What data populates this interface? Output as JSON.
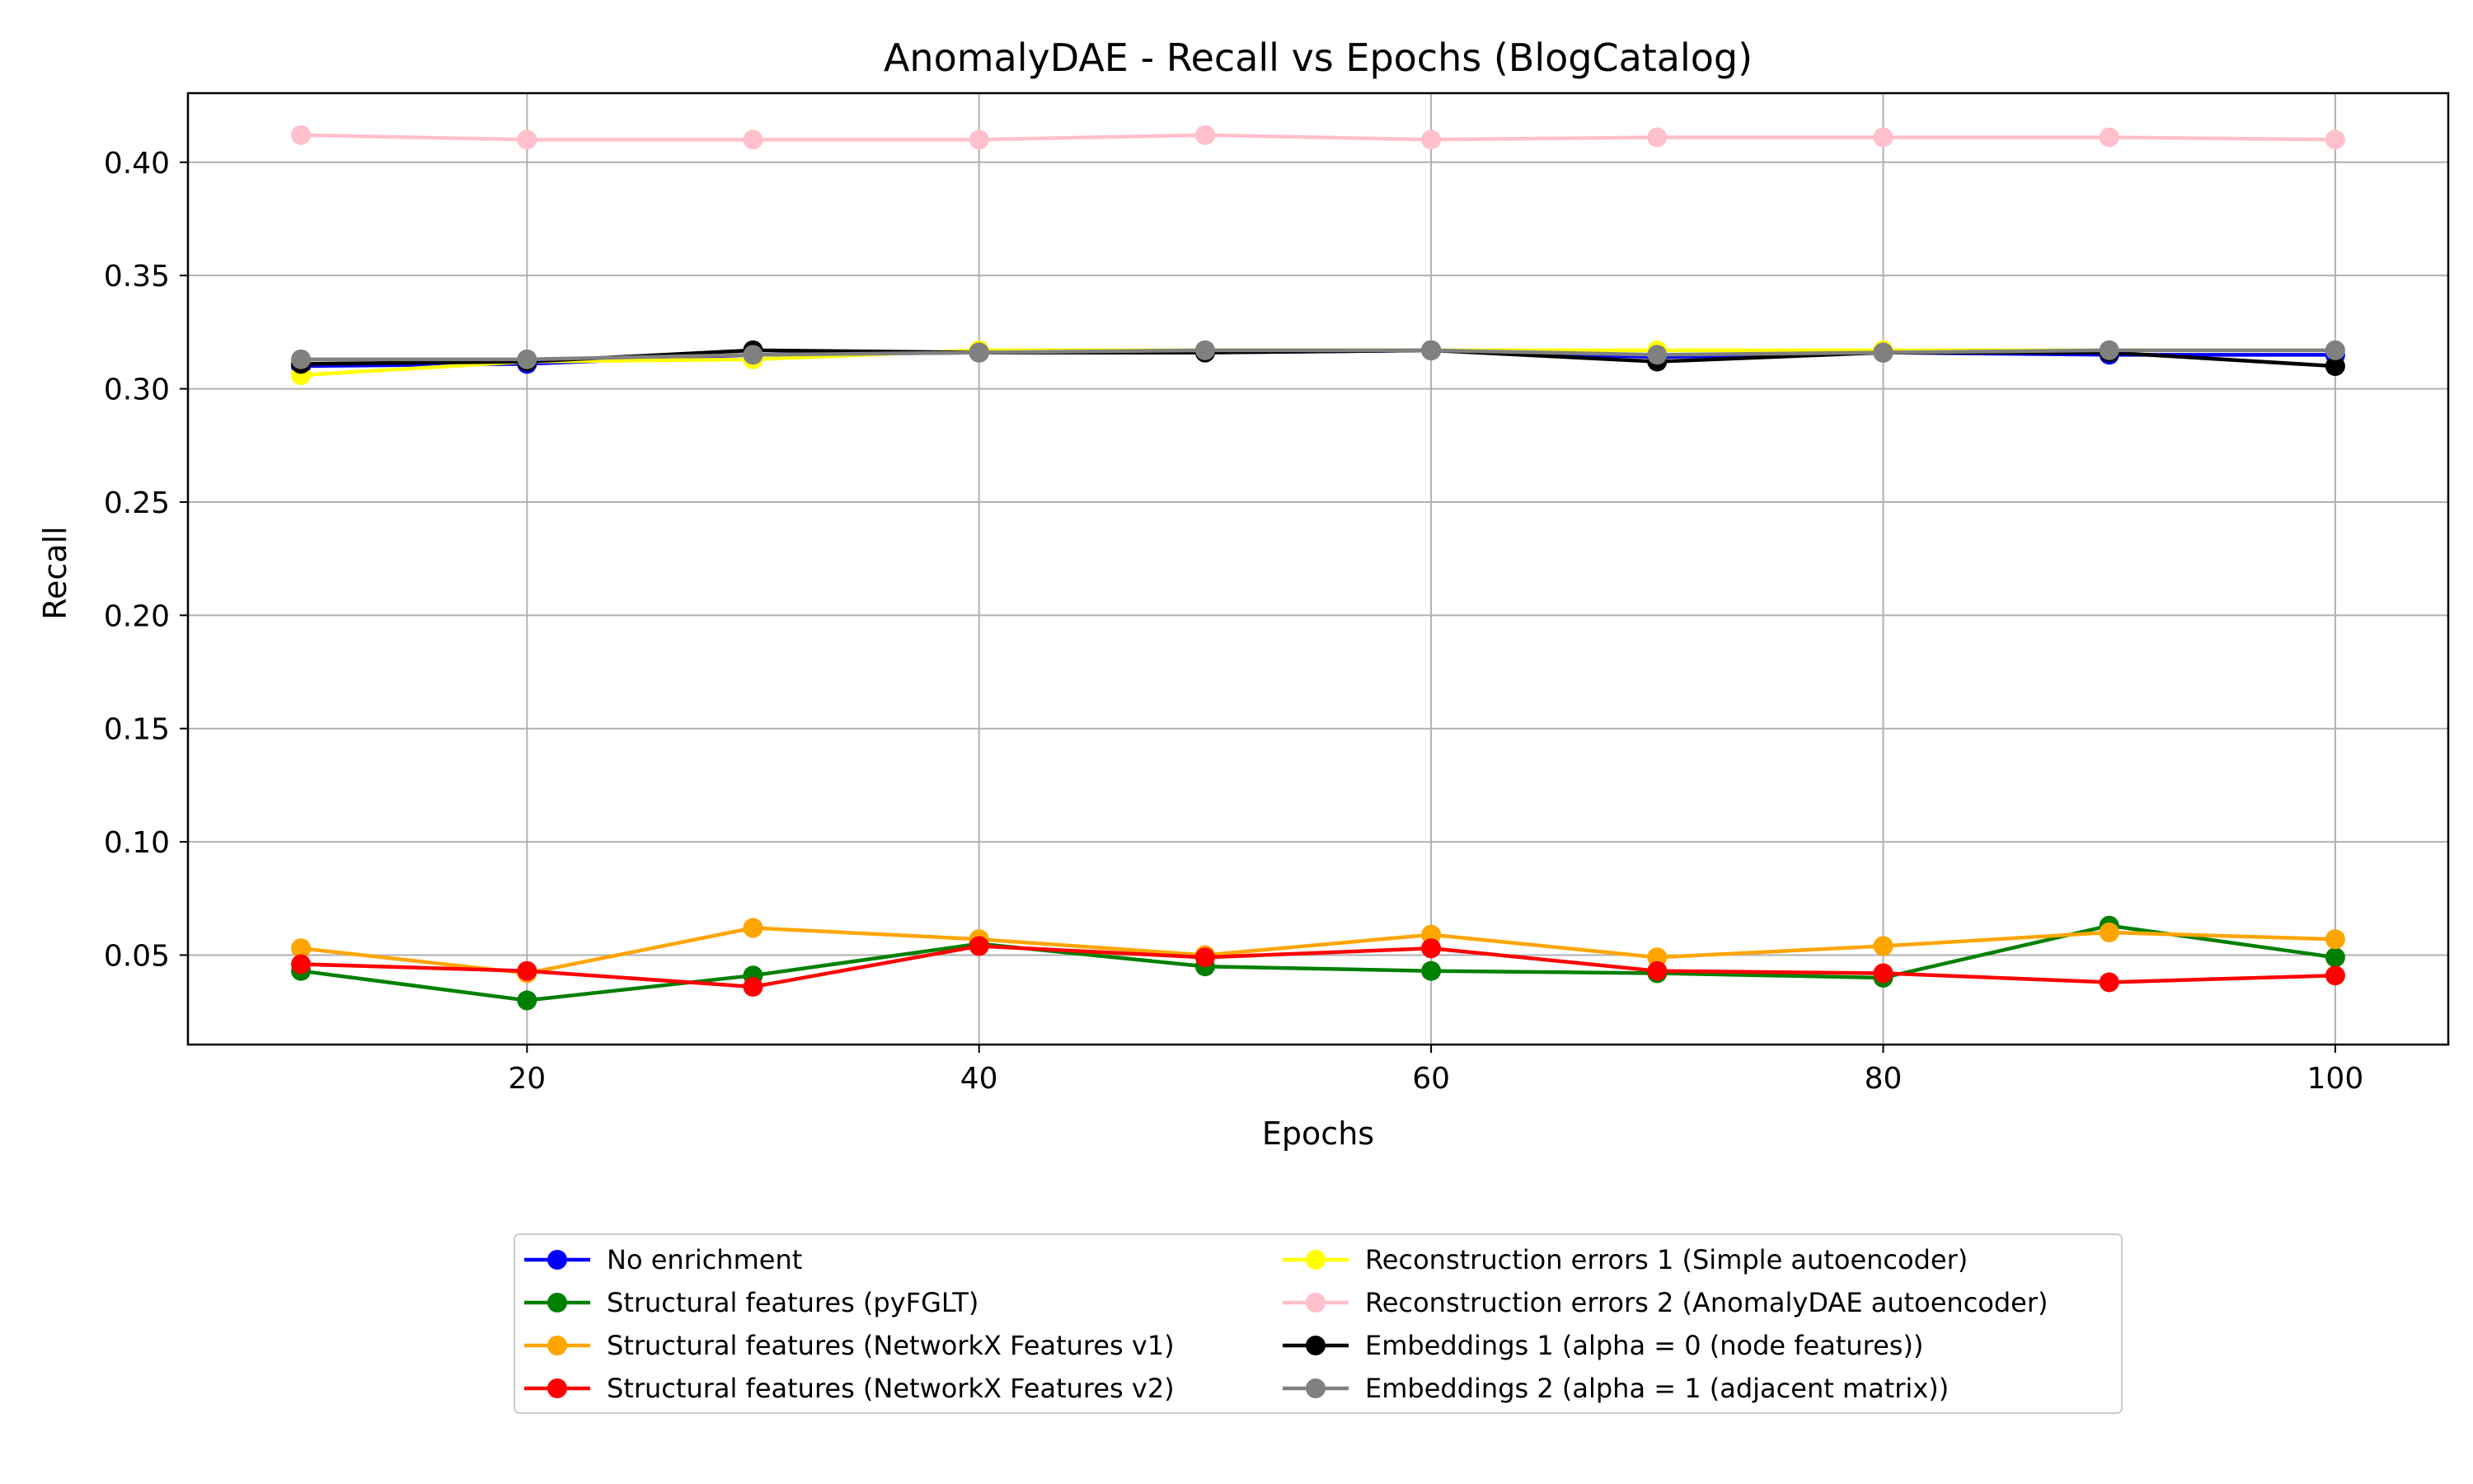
{
  "chart_data": {
    "type": "line",
    "title": "AnomalyDAE - Recall vs Epochs (BlogCatalog)",
    "xlabel": "Epochs",
    "ylabel": "Recall",
    "x": [
      10,
      20,
      30,
      40,
      50,
      60,
      70,
      80,
      90,
      100
    ],
    "xlim": [
      5,
      105
    ],
    "ylim": [
      0.0105,
      0.4305
    ],
    "xticks": [
      20,
      40,
      60,
      80,
      100
    ],
    "yticks": [
      0.05,
      0.1,
      0.15,
      0.2,
      0.25,
      0.3,
      0.35,
      0.4
    ],
    "xtick_labels": [
      "20",
      "40",
      "60",
      "80",
      "100"
    ],
    "ytick_labels": [
      "0.05",
      "0.10",
      "0.15",
      "0.20",
      "0.25",
      "0.30",
      "0.35",
      "0.40"
    ],
    "grid": true,
    "legend_placement": "bottom-center, below plot, 2 columns",
    "series": [
      {
        "name": "No enrichment",
        "color": "#0000ff",
        "values": [
          0.31,
          0.311,
          0.315,
          0.316,
          0.316,
          0.317,
          0.314,
          0.316,
          0.315,
          0.315
        ]
      },
      {
        "name": "Structural features (pyFGLT)",
        "color": "#008000",
        "values": [
          0.043,
          0.03,
          0.041,
          0.055,
          0.045,
          0.043,
          0.042,
          0.04,
          0.063,
          0.049
        ]
      },
      {
        "name": "Structural features (NetworkX Features v1)",
        "color": "#ffa500",
        "values": [
          0.053,
          0.042,
          0.062,
          0.057,
          0.05,
          0.059,
          0.049,
          0.054,
          0.06,
          0.057
        ]
      },
      {
        "name": "Structural features (NetworkX Features v2)",
        "color": "#ff0000",
        "values": [
          0.046,
          0.043,
          0.036,
          0.054,
          0.049,
          0.053,
          0.043,
          0.042,
          0.038,
          0.041
        ]
      },
      {
        "name": "Reconstruction errors 1 (Simple autoencoder)",
        "color": "#ffff00",
        "values": [
          0.306,
          0.312,
          0.313,
          0.317,
          0.317,
          0.317,
          0.317,
          0.317,
          0.317,
          0.317
        ]
      },
      {
        "name": "Reconstruction errors 2 (AnomalyDAE autoencoder)",
        "color": "#ffc0cb",
        "values": [
          0.412,
          0.41,
          0.41,
          0.41,
          0.412,
          0.41,
          0.411,
          0.411,
          0.411,
          0.41
        ]
      },
      {
        "name": "Embeddings 1 (alpha = 0 (node features))",
        "color": "#000000",
        "values": [
          0.311,
          0.312,
          0.317,
          0.316,
          0.316,
          0.317,
          0.312,
          0.316,
          0.316,
          0.31
        ]
      },
      {
        "name": "Embeddings 2 (alpha = 1 (adjacent matrix))",
        "color": "#808080",
        "values": [
          0.313,
          0.313,
          0.315,
          0.316,
          0.317,
          0.317,
          0.315,
          0.316,
          0.317,
          0.317
        ]
      }
    ]
  }
}
